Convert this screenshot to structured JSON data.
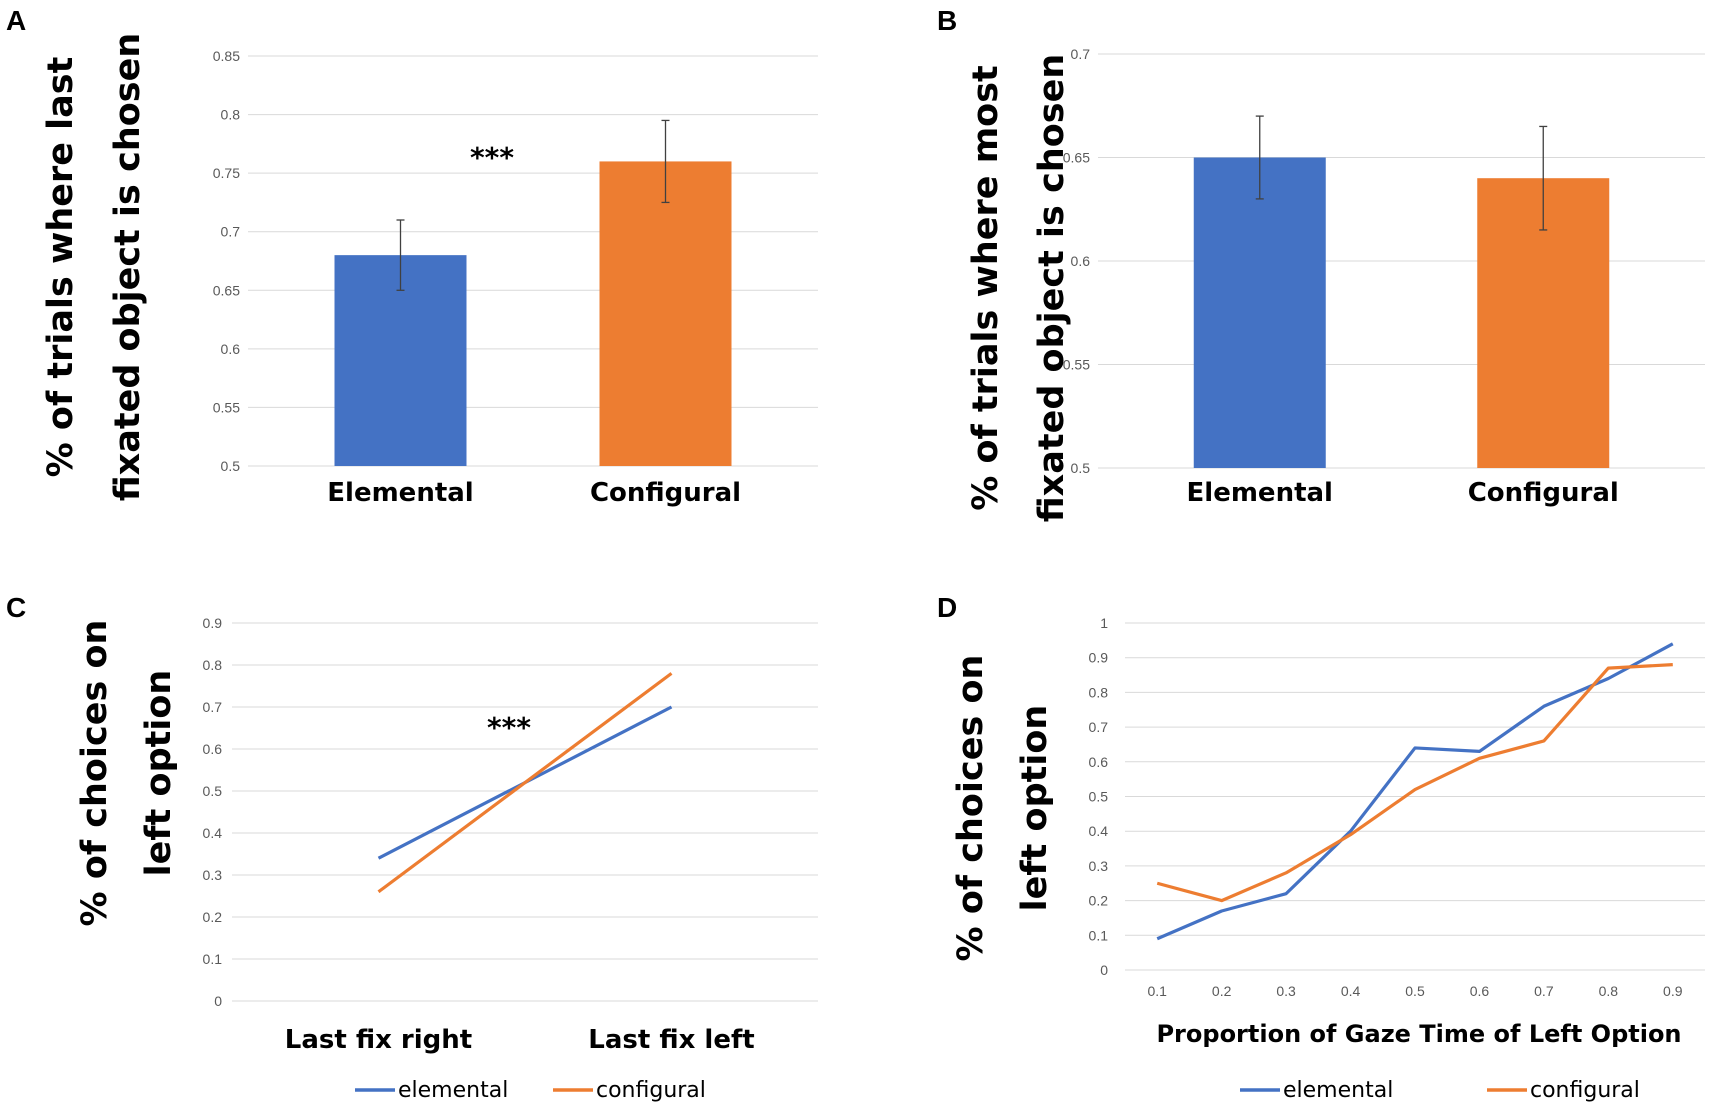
{
  "colors": {
    "elemental": "#4472C4",
    "configural": "#ED7D31",
    "grid": "#D9D9D9",
    "tick": "#595959",
    "error": "#404040"
  },
  "chart_data": [
    {
      "panel": "A",
      "type": "bar",
      "ylabel_lines": [
        "% of trials where last",
        "fixated object is chosen"
      ],
      "categories": [
        "Elemental",
        "Configural"
      ],
      "values": [
        0.68,
        0.76
      ],
      "errors": [
        [
          0.65,
          0.71
        ],
        [
          0.725,
          0.795
        ]
      ],
      "ylim": [
        0.5,
        0.85
      ],
      "yticks": [
        0.5,
        0.55,
        0.6,
        0.65,
        0.7,
        0.75,
        0.8,
        0.85
      ],
      "ytick_labels": [
        "0.5",
        "0.55",
        "0.6",
        "0.65",
        "0.7",
        "0.75",
        "0.8",
        "0.85"
      ],
      "annotation": "***",
      "grid": true
    },
    {
      "panel": "B",
      "type": "bar",
      "ylabel_lines": [
        "% of trials where most",
        "fixated object is chosen"
      ],
      "categories": [
        "Elemental",
        "Configural"
      ],
      "values": [
        0.65,
        0.64
      ],
      "errors": [
        [
          0.63,
          0.67
        ],
        [
          0.615,
          0.665
        ]
      ],
      "ylim": [
        0.5,
        0.7
      ],
      "yticks": [
        0.5,
        0.55,
        0.6,
        0.65,
        0.7
      ],
      "ytick_labels": [
        "0.5",
        "0.55",
        "0.6",
        "0.65",
        "0.7"
      ],
      "annotation": "",
      "grid": true
    },
    {
      "panel": "C",
      "type": "line",
      "ylabel_lines": [
        "% of choices on",
        "left option"
      ],
      "categories": [
        "Last fix right",
        "Last fix left"
      ],
      "series": [
        {
          "name": "elemental",
          "values": [
            0.34,
            0.7
          ]
        },
        {
          "name": "configural",
          "values": [
            0.26,
            0.78
          ]
        }
      ],
      "ylim": [
        0,
        0.9
      ],
      "yticks": [
        0,
        0.1,
        0.2,
        0.3,
        0.4,
        0.5,
        0.6,
        0.7,
        0.8,
        0.9
      ],
      "ytick_labels": [
        "0",
        "0.1",
        "0.2",
        "0.3",
        "0.4",
        "0.5",
        "0.6",
        "0.7",
        "0.8",
        "0.9"
      ],
      "annotation": "***",
      "legend": "bottom",
      "grid": true
    },
    {
      "panel": "D",
      "type": "line",
      "ylabel_lines": [
        "% of choices on",
        "left option"
      ],
      "xlabel": "Proportion of Gaze Time of Left Option",
      "categories": [
        "0.1",
        "0.2",
        "0.3",
        "0.4",
        "0.5",
        "0.6",
        "0.7",
        "0.8",
        "0.9"
      ],
      "series": [
        {
          "name": "elemental",
          "values": [
            0.09,
            0.17,
            0.22,
            0.4,
            0.64,
            0.63,
            0.76,
            0.84,
            0.94
          ]
        },
        {
          "name": "configural",
          "values": [
            0.25,
            0.2,
            0.28,
            0.39,
            0.52,
            0.61,
            0.66,
            0.87,
            0.88
          ]
        }
      ],
      "ylim": [
        0,
        1
      ],
      "yticks": [
        0,
        0.1,
        0.2,
        0.3,
        0.4,
        0.5,
        0.6,
        0.7,
        0.8,
        0.9,
        1
      ],
      "ytick_labels": [
        "0",
        "0.1",
        "0.2",
        "0.3",
        "0.4",
        "0.5",
        "0.6",
        "0.7",
        "0.8",
        "0.9",
        "1"
      ],
      "legend": "bottom",
      "grid": true
    }
  ]
}
